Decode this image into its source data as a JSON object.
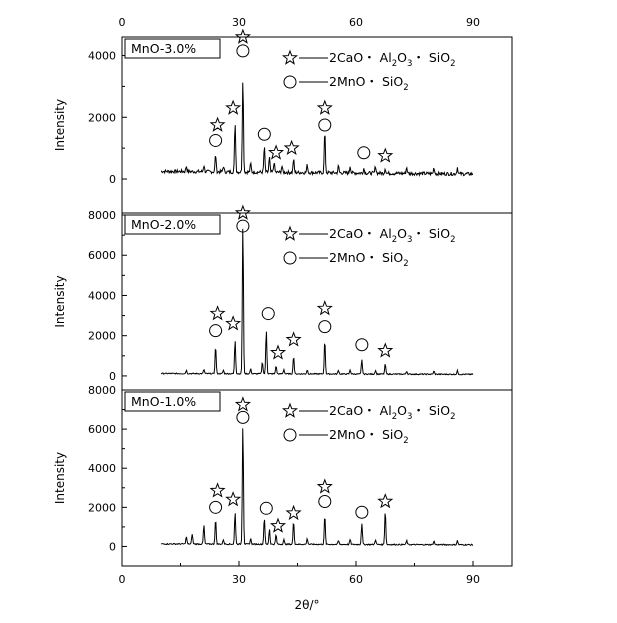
{
  "chart_data": {
    "type": "line",
    "xlabel": "2θ/°",
    "xlim": [
      0,
      100
    ],
    "x_ticks": [
      0,
      30,
      60,
      90
    ],
    "legend": {
      "star_label": {
        "parts": [
          "2CaO・ Al",
          "2",
          "O",
          "3",
          "・ SiO",
          "2"
        ],
        "text": "2CaO・ Al2O3・ SiO2"
      },
      "circle_label": {
        "parts": [
          "2MnO・ SiO",
          "2"
        ],
        "text": "2MnO・ SiO2"
      }
    },
    "panels": [
      {
        "tag": "MnO-3.0%",
        "ylabel": "Intensity",
        "ylim": [
          -1100,
          4600
        ],
        "y_ticks": [
          0,
          2000,
          4000
        ],
        "baseline": 250,
        "peaks": [
          {
            "x": 24.0,
            "y": 800,
            "marker": "star"
          },
          {
            "x": 29.0,
            "y": 1850,
            "marker": "star"
          },
          {
            "x": 31.0,
            "y": 3300,
            "marker": "star"
          },
          {
            "x": 36.5,
            "y": 1050,
            "marker": "circle"
          },
          {
            "x": 39.0,
            "y": 550,
            "marker": "star"
          },
          {
            "x": 44.0,
            "y": 650,
            "marker": "star"
          },
          {
            "x": 52.0,
            "y": 1550,
            "marker": "star"
          },
          {
            "x": 62.0,
            "y": 350,
            "marker": "circle"
          },
          {
            "x": 67.5,
            "y": 350,
            "marker": "star"
          }
        ],
        "minor_peaks": [
          {
            "x": 16.5,
            "y": 420
          },
          {
            "x": 21.0,
            "y": 450
          },
          {
            "x": 26.0,
            "y": 420
          },
          {
            "x": 33.0,
            "y": 500
          },
          {
            "x": 37.8,
            "y": 700
          },
          {
            "x": 41.0,
            "y": 420
          },
          {
            "x": 47.5,
            "y": 460
          },
          {
            "x": 55.5,
            "y": 420
          },
          {
            "x": 58.5,
            "y": 430
          },
          {
            "x": 65.0,
            "y": 420
          },
          {
            "x": 73.0,
            "y": 380
          },
          {
            "x": 80.0,
            "y": 370
          },
          {
            "x": 86.0,
            "y": 380
          }
        ],
        "star_markers": [
          {
            "x": 24.5,
            "y": 1750
          },
          {
            "x": 28.5,
            "y": 2300
          },
          {
            "x": 31.0,
            "y": 4600
          },
          {
            "x": 39.5,
            "y": 850
          },
          {
            "x": 43.5,
            "y": 1000
          },
          {
            "x": 52.0,
            "y": 2300
          },
          {
            "x": 67.5,
            "y": 750
          }
        ],
        "circle_markers": [
          {
            "x": 24.0,
            "y": 1250
          },
          {
            "x": 31.0,
            "y": 4150
          },
          {
            "x": 36.5,
            "y": 1450
          },
          {
            "x": 52.0,
            "y": 1750
          },
          {
            "x": 62.0,
            "y": 850
          }
        ]
      },
      {
        "tag": "MnO-2.0%",
        "ylabel": "Intensity",
        "ylim": [
          -700,
          8100
        ],
        "y_ticks": [
          0,
          2000,
          4000,
          6000,
          8000
        ],
        "baseline": 120,
        "peaks": [
          {
            "x": 24.0,
            "y": 1500,
            "marker": "star"
          },
          {
            "x": 29.0,
            "y": 1800,
            "marker": "star"
          },
          {
            "x": 31.0,
            "y": 7600,
            "marker": "star"
          },
          {
            "x": 37.0,
            "y": 2300,
            "marker": "circle"
          },
          {
            "x": 39.5,
            "y": 500,
            "marker": "star"
          },
          {
            "x": 44.0,
            "y": 1000,
            "marker": "star"
          },
          {
            "x": 52.0,
            "y": 1800,
            "marker": "star"
          },
          {
            "x": 61.5,
            "y": 800,
            "marker": "circle"
          },
          {
            "x": 67.5,
            "y": 600,
            "marker": "star"
          }
        ],
        "minor_peaks": [
          {
            "x": 16.5,
            "y": 280
          },
          {
            "x": 21.0,
            "y": 320
          },
          {
            "x": 26.0,
            "y": 280
          },
          {
            "x": 33.0,
            "y": 350
          },
          {
            "x": 36.0,
            "y": 700
          },
          {
            "x": 41.5,
            "y": 320
          },
          {
            "x": 47.5,
            "y": 300
          },
          {
            "x": 55.5,
            "y": 280
          },
          {
            "x": 58.5,
            "y": 300
          },
          {
            "x": 65.0,
            "y": 280
          },
          {
            "x": 73.0,
            "y": 240
          },
          {
            "x": 80.0,
            "y": 240
          },
          {
            "x": 86.0,
            "y": 260
          }
        ],
        "star_markers": [
          {
            "x": 24.5,
            "y": 3100
          },
          {
            "x": 28.5,
            "y": 2600
          },
          {
            "x": 31.0,
            "y": 8100
          },
          {
            "x": 40.0,
            "y": 1150
          },
          {
            "x": 44.0,
            "y": 1800
          },
          {
            "x": 52.0,
            "y": 3350
          },
          {
            "x": 67.5,
            "y": 1250
          }
        ],
        "circle_markers": [
          {
            "x": 24.0,
            "y": 2250
          },
          {
            "x": 31.0,
            "y": 7450
          },
          {
            "x": 37.5,
            "y": 3100
          },
          {
            "x": 52.0,
            "y": 2450
          },
          {
            "x": 61.5,
            "y": 1550
          }
        ]
      },
      {
        "tag": "MnO-1.0%",
        "ylabel": "Intensity",
        "ylim": [
          -1000,
          8000
        ],
        "y_ticks": [
          0,
          2000,
          4000,
          6000,
          8000
        ],
        "baseline": 130,
        "peaks": [
          {
            "x": 24.0,
            "y": 1400,
            "marker": "star"
          },
          {
            "x": 29.0,
            "y": 1750,
            "marker": "star"
          },
          {
            "x": 31.0,
            "y": 6300,
            "marker": "star"
          },
          {
            "x": 36.5,
            "y": 1500,
            "marker": "circle"
          },
          {
            "x": 39.5,
            "y": 600,
            "marker": "star"
          },
          {
            "x": 44.0,
            "y": 1300,
            "marker": "star"
          },
          {
            "x": 52.0,
            "y": 1600,
            "marker": "star"
          },
          {
            "x": 61.5,
            "y": 1200,
            "marker": "circle"
          },
          {
            "x": 67.5,
            "y": 1850,
            "marker": "star"
          }
        ],
        "minor_peaks": [
          {
            "x": 16.5,
            "y": 500
          },
          {
            "x": 18.0,
            "y": 650
          },
          {
            "x": 21.0,
            "y": 1100
          },
          {
            "x": 26.0,
            "y": 350
          },
          {
            "x": 33.0,
            "y": 400
          },
          {
            "x": 37.8,
            "y": 900
          },
          {
            "x": 41.5,
            "y": 350
          },
          {
            "x": 47.5,
            "y": 400
          },
          {
            "x": 55.5,
            "y": 300
          },
          {
            "x": 58.5,
            "y": 350
          },
          {
            "x": 65.0,
            "y": 350
          },
          {
            "x": 73.0,
            "y": 300
          },
          {
            "x": 80.0,
            "y": 280
          },
          {
            "x": 86.0,
            "y": 300
          }
        ],
        "star_markers": [
          {
            "x": 24.5,
            "y": 2850
          },
          {
            "x": 28.5,
            "y": 2400
          },
          {
            "x": 31.0,
            "y": 7250
          },
          {
            "x": 40.0,
            "y": 1050
          },
          {
            "x": 44.0,
            "y": 1700
          },
          {
            "x": 52.0,
            "y": 3050
          },
          {
            "x": 67.5,
            "y": 2300
          }
        ],
        "circle_markers": [
          {
            "x": 24.0,
            "y": 2000
          },
          {
            "x": 31.0,
            "y": 6600
          },
          {
            "x": 37.0,
            "y": 1950
          },
          {
            "x": 52.0,
            "y": 2300
          },
          {
            "x": 61.5,
            "y": 1750
          }
        ]
      }
    ]
  }
}
